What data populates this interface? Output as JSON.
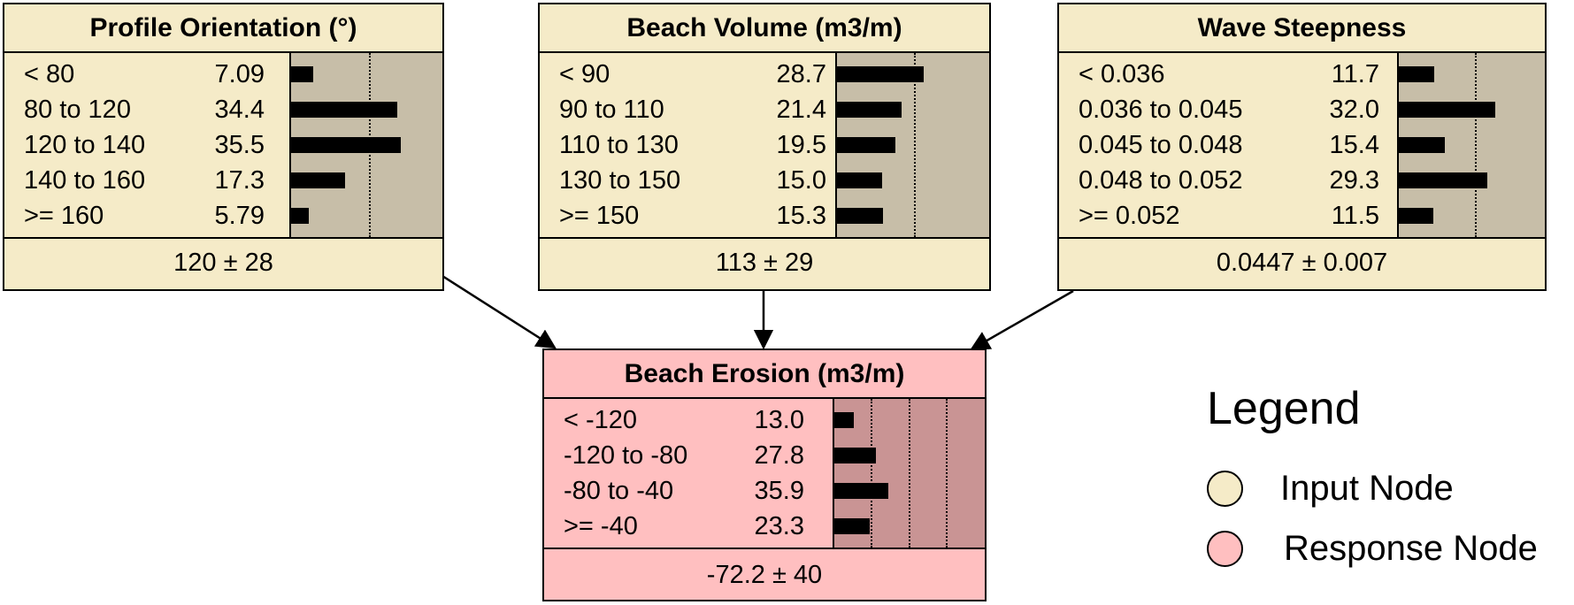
{
  "nodes": [
    {
      "id": "profile-orientation",
      "kind": "input",
      "title": "Profile Orientation (°)",
      "states": [
        {
          "label": "< 80",
          "value": "7.09"
        },
        {
          "label": "80 to 120",
          "value": "34.4"
        },
        {
          "label": "120 to 140",
          "value": "35.5"
        },
        {
          "label": "140 to 160",
          "value": "17.3"
        },
        {
          "label": ">= 160",
          "value": "5.79"
        }
      ],
      "summary": "120 ± 28"
    },
    {
      "id": "beach-volume",
      "kind": "input",
      "title": "Beach Volume (m3/m)",
      "states": [
        {
          "label": "< 90",
          "value": "28.7"
        },
        {
          "label": "90 to 110",
          "value": "21.4"
        },
        {
          "label": "110 to 130",
          "value": "19.5"
        },
        {
          "label": "130 to 150",
          "value": "15.0"
        },
        {
          "label": ">= 150",
          "value": "15.3"
        }
      ],
      "summary": "113 ± 29"
    },
    {
      "id": "wave-steepness",
      "kind": "input",
      "title": "Wave Steepness",
      "states": [
        {
          "label": "< 0.036",
          "value": "11.7"
        },
        {
          "label": "0.036 to 0.045",
          "value": "32.0"
        },
        {
          "label": "0.045 to 0.048",
          "value": "15.4"
        },
        {
          "label": "0.048 to 0.052",
          "value": "29.3"
        },
        {
          "label": ">= 0.052",
          "value": "11.5"
        }
      ],
      "summary": "0.0447 ± 0.007"
    },
    {
      "id": "beach-erosion",
      "kind": "response",
      "title": "Beach Erosion (m3/m)",
      "states": [
        {
          "label": "< -120",
          "value": "13.0"
        },
        {
          "label": "-120 to -80",
          "value": "27.8"
        },
        {
          "label": "-80 to -40",
          "value": "35.9"
        },
        {
          "label": ">= -40",
          "value": "23.3"
        }
      ],
      "summary": "-72.2 ± 40"
    }
  ],
  "edges": [
    {
      "from": "profile-orientation",
      "to": "beach-erosion"
    },
    {
      "from": "beach-volume",
      "to": "beach-erosion"
    },
    {
      "from": "wave-steepness",
      "to": "beach-erosion"
    }
  ],
  "legend": {
    "title": "Legend",
    "items": [
      {
        "label": "Input Node",
        "color": "#f5ebc8"
      },
      {
        "label": "Response Node",
        "color": "#ffbfc0"
      }
    ]
  },
  "colors": {
    "input_node": "#f5ebc8",
    "input_bar_panel": "#c7bea8",
    "response_node": "#ffbfc0",
    "response_bar_panel": "#c99494",
    "bar": "#000000"
  }
}
